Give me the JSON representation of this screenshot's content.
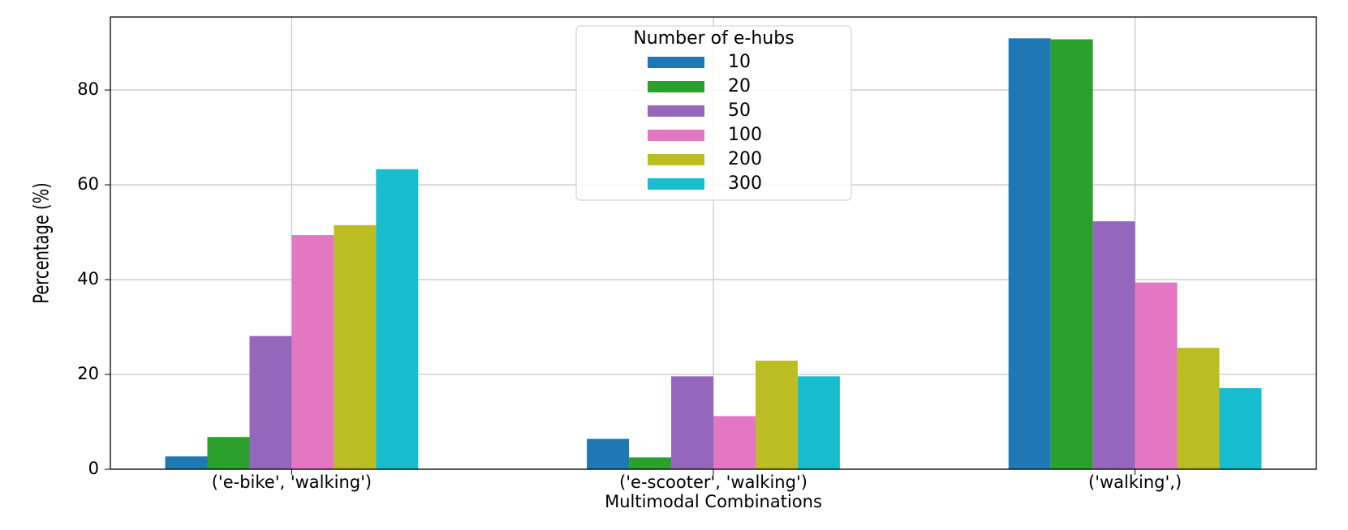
{
  "chart_data": {
    "type": "bar",
    "x_label": "Multimodal Combinations",
    "y_label": "Percentage (%)",
    "legend_title": "Number of e-hubs",
    "legend_position": "upper center",
    "grid": true,
    "categories": [
      "('e-bike', 'walking')",
      "('e-scooter', 'walking')",
      "('walking',)"
    ],
    "series": [
      {
        "name": "10",
        "color": "#1f77b4",
        "values": [
          2.7,
          6.4,
          90.9
        ]
      },
      {
        "name": "20",
        "color": "#2ca02c",
        "values": [
          6.8,
          2.5,
          90.7
        ]
      },
      {
        "name": "50",
        "color": "#9467bd",
        "values": [
          28.1,
          19.6,
          52.3
        ]
      },
      {
        "name": "100",
        "color": "#e377c2",
        "values": [
          49.4,
          11.2,
          39.4
        ]
      },
      {
        "name": "200",
        "color": "#bcbd22",
        "values": [
          51.5,
          22.9,
          25.6
        ]
      },
      {
        "name": "300",
        "color": "#17becf",
        "values": [
          63.3,
          19.6,
          17.1
        ]
      }
    ],
    "ylim": [
      0,
      95.4
    ],
    "yticks": [
      0,
      20,
      40,
      60,
      80
    ]
  }
}
